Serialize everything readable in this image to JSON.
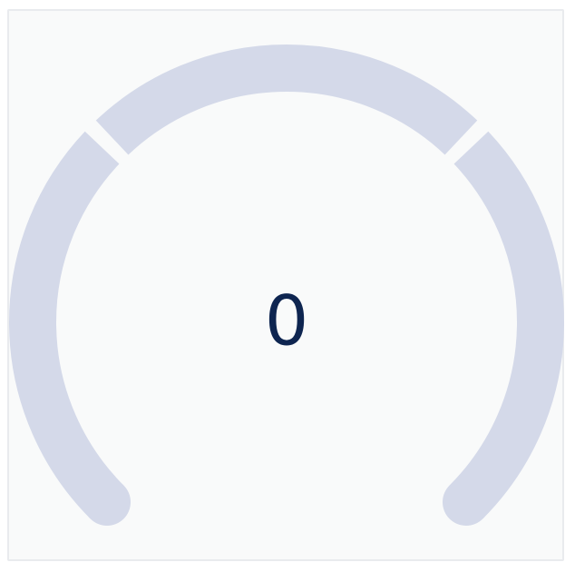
{
  "colors": {
    "panel_background": "#f9fafa",
    "panel_border": "#e9ebee",
    "track": "#d4d9e9",
    "value_text": "#0e2550"
  },
  "chart_data": {
    "type": "gauge",
    "value": "0",
    "numeric_value": 0,
    "min": 0,
    "max": 100,
    "segments": 3,
    "title": ""
  }
}
